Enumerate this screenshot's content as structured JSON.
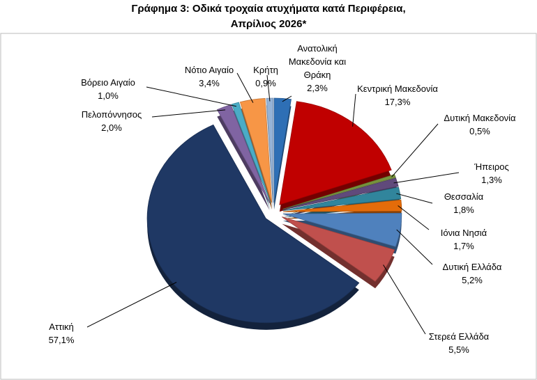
{
  "chart_data": {
    "type": "pie",
    "title": "Γράφημα 3: Οδικά τροχαία ατυχήματα κατά Περιφέρεια, Απρίλιος 2026*",
    "categories": [
      "Ανατολική Μακεδονία και Θράκη",
      "Κεντρική Μακεδονία",
      "Δυτική Μακεδονία",
      "Ήπειρος",
      "Θεσσαλία",
      "Ιόνια Νησιά",
      "Δυτική Ελλάδα",
      "Στερεά Ελλάδα",
      "Αττική",
      "Πελοπόννησος",
      "Βόρειο Αιγαίο",
      "Νότιο Αιγαίο",
      "Κρήτη"
    ],
    "values": [
      2.3,
      17.3,
      0.5,
      1.3,
      1.8,
      1.7,
      5.2,
      5.5,
      57.1,
      2.0,
      1.0,
      3.4,
      0.9
    ],
    "value_labels": [
      "2,3%",
      "17,3%",
      "0,5%",
      "1,3%",
      "1,8%",
      "1,7%",
      "5,2%",
      "5,5%",
      "57,1%",
      "2,0%",
      "1,0%",
      "3,4%",
      "0,9%"
    ],
    "colors": [
      "#2e6fb5",
      "#c00000",
      "#77933c",
      "#604a7b",
      "#31859c",
      "#e46c0a",
      "#4f81bd",
      "#c0504d",
      "#1f3864",
      "#8064a2",
      "#4bacc6",
      "#f79646",
      "#95b3d7"
    ]
  }
}
